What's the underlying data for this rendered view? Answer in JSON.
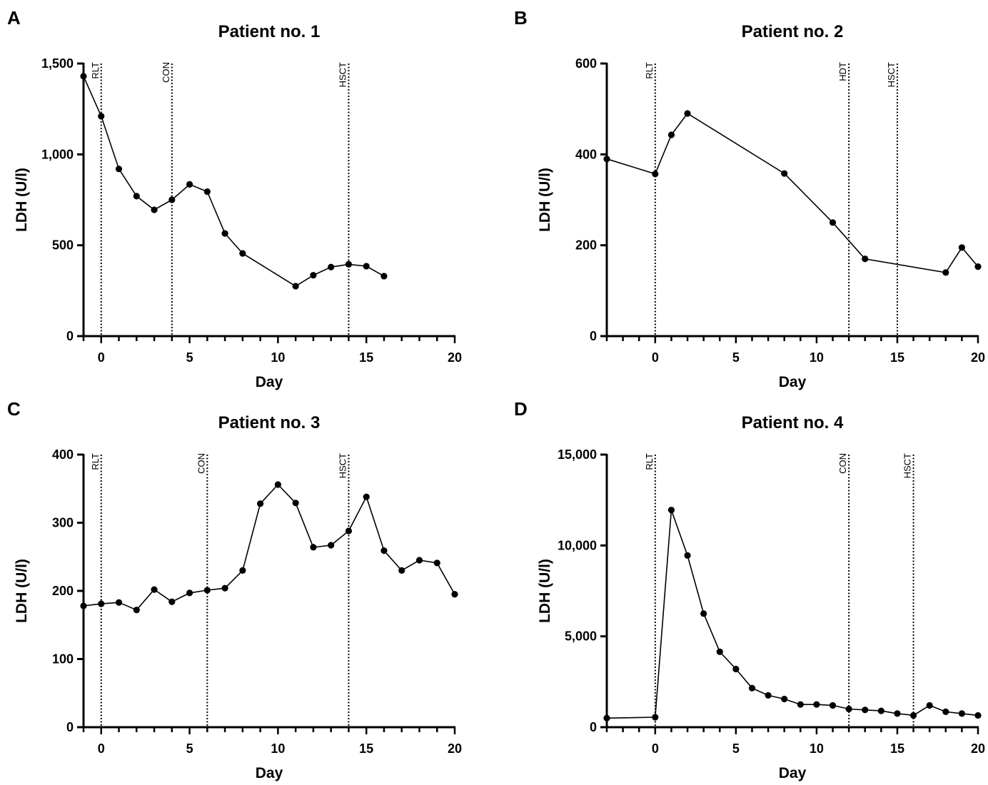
{
  "chart_data": [
    {
      "panel": "A",
      "type": "line",
      "title": "Patient no. 1",
      "xlabel": "Day",
      "ylabel": "LDH (U/l)",
      "xlim": [
        -1,
        20
      ],
      "ylim": [
        0,
        1500
      ],
      "xticks": [
        0,
        5,
        10,
        15,
        20
      ],
      "xtick_labels": [
        "0",
        "5",
        "10",
        "15",
        "20"
      ],
      "yticks": [
        0,
        500,
        1000,
        1500
      ],
      "ytick_labels": [
        "0",
        "500",
        "1,000",
        "1,500"
      ],
      "events": [
        {
          "day": 0,
          "label": "RLT"
        },
        {
          "day": 4,
          "label": "CON"
        },
        {
          "day": 14,
          "label": "HSCT"
        }
      ],
      "series": [
        {
          "x": [
            -1,
            0,
            1,
            2,
            3,
            4,
            5,
            6,
            7,
            8,
            11,
            12,
            13,
            14,
            15,
            16
          ],
          "values": [
            1430,
            1210,
            920,
            770,
            695,
            750,
            835,
            795,
            565,
            455,
            275,
            335,
            380,
            395,
            385,
            330
          ]
        }
      ]
    },
    {
      "panel": "B",
      "type": "line",
      "title": "Patient no. 2",
      "xlabel": "Day",
      "ylabel": "LDH (U/l)",
      "xlim": [
        -3,
        20
      ],
      "ylim": [
        0,
        600
      ],
      "xticks": [
        0,
        5,
        10,
        15,
        20
      ],
      "xtick_labels": [
        "0",
        "5",
        "10",
        "15",
        "20"
      ],
      "yticks": [
        0,
        200,
        400,
        600
      ],
      "ytick_labels": [
        "0",
        "200",
        "400",
        "600"
      ],
      "events": [
        {
          "day": 0,
          "label": "RLT"
        },
        {
          "day": 12,
          "label": "HDT"
        },
        {
          "day": 15,
          "label": "HSCT"
        }
      ],
      "series": [
        {
          "x": [
            -3,
            0,
            1,
            2,
            8,
            11,
            13,
            18,
            19,
            20
          ],
          "values": [
            390,
            357,
            443,
            490,
            358,
            250,
            170,
            140,
            195,
            153
          ]
        }
      ]
    },
    {
      "panel": "C",
      "type": "line",
      "title": "Patient no. 3",
      "xlabel": "Day",
      "ylabel": "LDH (U/l)",
      "xlim": [
        -1,
        20
      ],
      "ylim": [
        0,
        400
      ],
      "xticks": [
        0,
        5,
        10,
        15,
        20
      ],
      "xtick_labels": [
        "0",
        "5",
        "10",
        "15",
        "20"
      ],
      "yticks": [
        0,
        100,
        200,
        300,
        400
      ],
      "ytick_labels": [
        "0",
        "100",
        "200",
        "300",
        "400"
      ],
      "events": [
        {
          "day": 0,
          "label": "RLT"
        },
        {
          "day": 6,
          "label": "CON"
        },
        {
          "day": 14,
          "label": "HSCT"
        }
      ],
      "series": [
        {
          "x": [
            -1,
            0,
            1,
            2,
            3,
            4,
            5,
            6,
            7,
            8,
            9,
            10,
            11,
            12,
            13,
            14,
            15,
            16,
            17,
            18,
            19,
            20
          ],
          "values": [
            178,
            181,
            183,
            172,
            202,
            184,
            197,
            201,
            204,
            230,
            328,
            356,
            329,
            264,
            267,
            288,
            338,
            259,
            230,
            245,
            241,
            195
          ]
        }
      ]
    },
    {
      "panel": "D",
      "type": "line",
      "title": "Patient no. 4",
      "xlabel": "Day",
      "ylabel": "LDH (U/l)",
      "xlim": [
        -3,
        20
      ],
      "ylim": [
        0,
        15000
      ],
      "xticks": [
        0,
        5,
        10,
        15,
        20
      ],
      "xtick_labels": [
        "0",
        "5",
        "10",
        "15",
        "20"
      ],
      "yticks": [
        0,
        5000,
        10000,
        15000
      ],
      "ytick_labels": [
        "0",
        "5,000",
        "10,000",
        "15,000"
      ],
      "events": [
        {
          "day": 0,
          "label": "RLT"
        },
        {
          "day": 12,
          "label": "CON"
        },
        {
          "day": 16,
          "label": "HSCT"
        }
      ],
      "series": [
        {
          "x": [
            -3,
            0,
            1,
            2,
            3,
            4,
            5,
            6,
            7,
            8,
            9,
            10,
            11,
            12,
            13,
            14,
            15,
            16,
            17,
            18,
            19,
            20
          ],
          "values": [
            500,
            550,
            11950,
            9450,
            6250,
            4150,
            3200,
            2150,
            1750,
            1550,
            1250,
            1250,
            1200,
            1000,
            950,
            900,
            750,
            650,
            1200,
            850,
            750,
            650
          ]
        }
      ]
    }
  ]
}
